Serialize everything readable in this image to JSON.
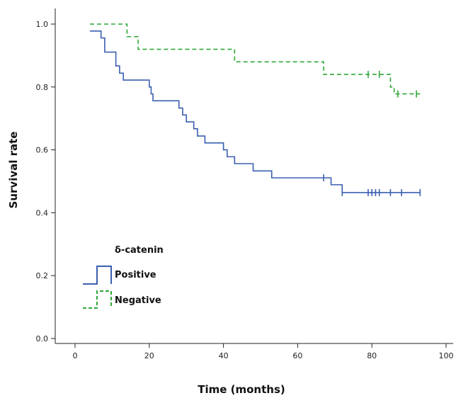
{
  "chart_data": {
    "type": "line",
    "xlabel": "Time (months)",
    "ylabel": "Survival rate",
    "xlim": [
      0,
      100
    ],
    "ylim": [
      0.0,
      1.0
    ],
    "x_ticks": [
      0,
      20,
      40,
      60,
      80,
      100
    ],
    "y_ticks": [
      "0.0",
      "0.2",
      "0.4",
      "0.6",
      "0.8",
      "1.0"
    ],
    "grid": false,
    "legend": {
      "title": "δ-catenin",
      "position": "bottom-left"
    },
    "series": [
      {
        "name": "Positive",
        "color": "#3a5fb0",
        "line_style": "solid",
        "steps": [
          [
            5,
            0.978
          ],
          [
            7,
            0.956
          ],
          [
            8,
            0.911
          ],
          [
            11,
            0.867
          ],
          [
            12,
            0.844
          ],
          [
            13,
            0.822
          ],
          [
            20,
            0.8
          ],
          [
            20.5,
            0.778
          ],
          [
            21,
            0.756
          ],
          [
            28,
            0.733
          ],
          [
            29,
            0.711
          ],
          [
            30,
            0.689
          ],
          [
            32,
            0.667
          ],
          [
            33,
            0.644
          ],
          [
            35,
            0.622
          ],
          [
            40,
            0.6
          ],
          [
            41,
            0.578
          ],
          [
            43,
            0.556
          ],
          [
            48,
            0.533
          ],
          [
            53,
            0.511
          ],
          [
            69,
            0.489
          ],
          [
            72,
            0.464
          ]
        ],
        "start": [
          4,
          0.978
        ],
        "end_x": 93,
        "censored": [
          [
            67,
            0.511
          ],
          [
            72,
            0.464
          ],
          [
            79,
            0.464
          ],
          [
            80,
            0.464
          ],
          [
            81,
            0.464
          ],
          [
            82,
            0.464
          ],
          [
            85,
            0.464
          ],
          [
            88,
            0.464
          ],
          [
            93,
            0.464
          ]
        ]
      },
      {
        "name": "Negative",
        "color": "#2ea836",
        "line_style": "dashed",
        "steps": [
          [
            14,
            0.96
          ],
          [
            17,
            0.92
          ],
          [
            43,
            0.88
          ],
          [
            67,
            0.84
          ],
          [
            85,
            0.8
          ],
          [
            86,
            0.778
          ]
        ],
        "start": [
          4,
          1.0
        ],
        "end_x": 93,
        "censored": [
          [
            79,
            0.84
          ],
          [
            82,
            0.84
          ],
          [
            87,
            0.778
          ],
          [
            92,
            0.778
          ]
        ]
      }
    ]
  }
}
